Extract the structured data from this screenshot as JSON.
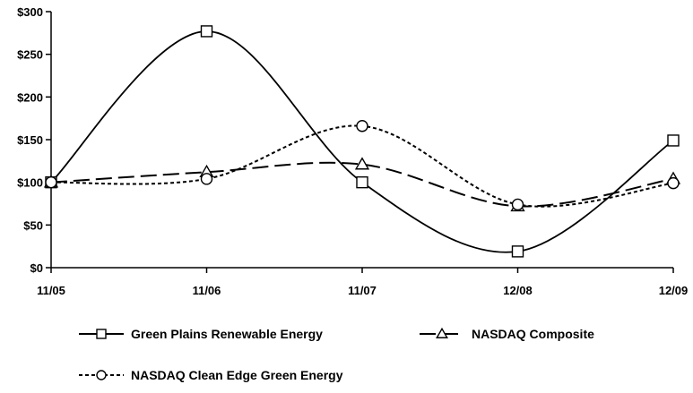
{
  "chart_data": {
    "type": "line",
    "title": "",
    "xlabel": "",
    "ylabel": "",
    "categories": [
      "11/05",
      "11/06",
      "11/07",
      "12/08",
      "12/09"
    ],
    "y_ticks": [
      "$0",
      "$50",
      "$100",
      "$150",
      "$200",
      "$250",
      "$300"
    ],
    "ylim": [
      0,
      300
    ],
    "grid": false,
    "legend_position": "bottom",
    "series": [
      {
        "name": "Green Plains Renewable Energy",
        "values": [
          100,
          277,
          100,
          19,
          149
        ],
        "marker": "square",
        "line_style": "solid",
        "color": "#000000"
      },
      {
        "name": "NASDAQ Composite",
        "values": [
          100,
          112,
          121,
          72,
          104
        ],
        "marker": "triangle",
        "line_style": "long-dash",
        "color": "#000000"
      },
      {
        "name": "NASDAQ Clean Edge Green Energy",
        "values": [
          100,
          104,
          166,
          74,
          99
        ],
        "marker": "circle",
        "line_style": "short-dash",
        "color": "#000000"
      }
    ]
  }
}
